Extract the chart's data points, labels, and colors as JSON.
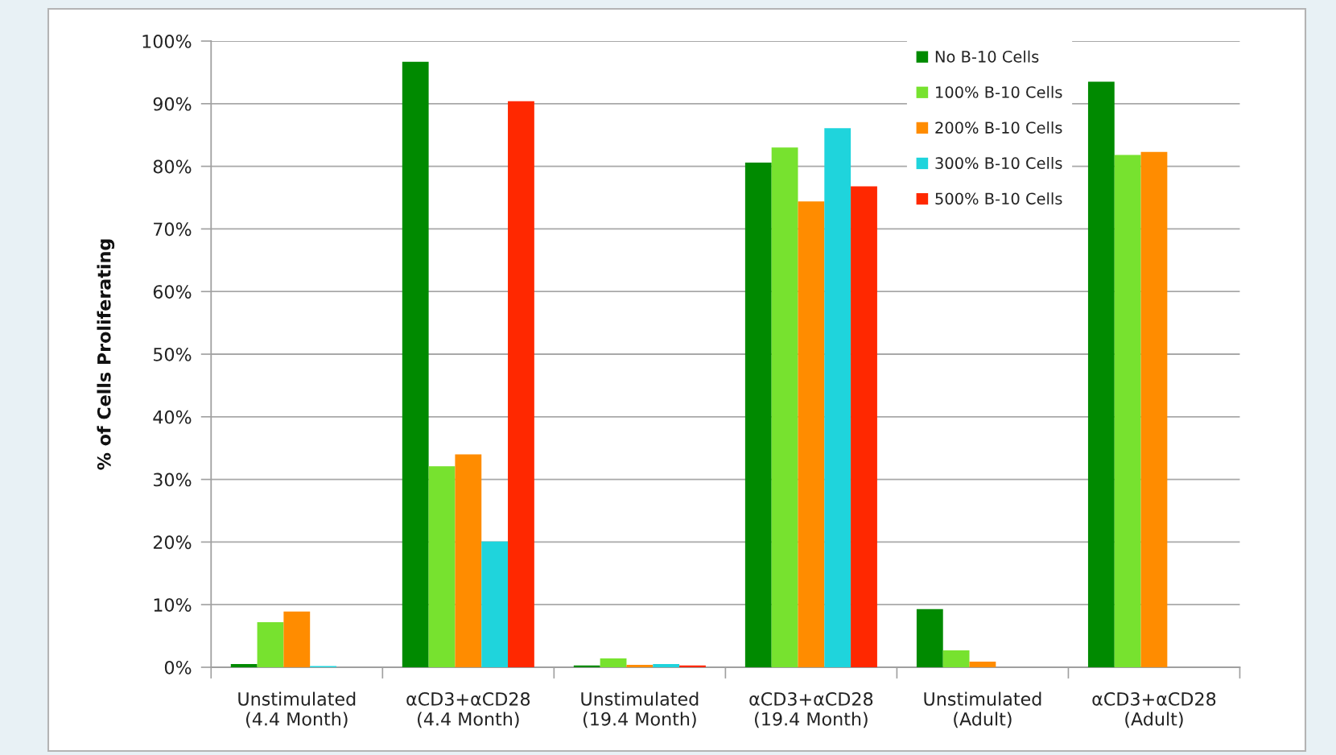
{
  "chart_data": {
    "type": "bar",
    "ylabel": "% of Cells Proliferating",
    "categories": [
      "Unstimulated\n(4.4 Month)",
      "αCD3+αCD28\n(4.4 Month)",
      "Unstimulated\n(19.4 Month)",
      "αCD3+αCD28\n(19.4 Month)",
      "Unstimulated\n(Adult)",
      "αCD3+αCD28\n(Adult)"
    ],
    "series": [
      {
        "name": "No B-10 Cells",
        "color": "#008a00",
        "values": [
          0.5,
          96.7,
          0.3,
          80.6,
          9.3,
          93.5
        ]
      },
      {
        "name": "100% B-10 Cells",
        "color": "#77e22f",
        "values": [
          7.2,
          32.1,
          1.4,
          83.0,
          2.7,
          81.8
        ]
      },
      {
        "name": "200% B-10 Cells",
        "color": "#ff8c00",
        "values": [
          8.9,
          34.0,
          0.4,
          74.4,
          0.9,
          82.3
        ]
      },
      {
        "name": "300% B-10 Cells",
        "color": "#1fd4dc",
        "values": [
          0.2,
          20.1,
          0.5,
          86.1,
          null,
          null
        ]
      },
      {
        "name": "500% B-10 Cells",
        "color": "#ff2800",
        "values": [
          null,
          90.4,
          0.3,
          76.8,
          null,
          null
        ]
      }
    ],
    "ylim": [
      0,
      100
    ],
    "yticks": [
      {
        "value": 0,
        "label": "0%"
      },
      {
        "value": 10,
        "label": "10%"
      },
      {
        "value": 20,
        "label": "20%"
      },
      {
        "value": 30,
        "label": "30%"
      },
      {
        "value": 40,
        "label": "40%"
      },
      {
        "value": 50,
        "label": "50%"
      },
      {
        "value": 60,
        "label": "60%"
      },
      {
        "value": 70,
        "label": "70%"
      },
      {
        "value": 80,
        "label": "80%"
      },
      {
        "value": 90,
        "label": "90%"
      },
      {
        "value": 100,
        "label": "100%"
      }
    ],
    "grid": "y",
    "legend": "top right"
  }
}
